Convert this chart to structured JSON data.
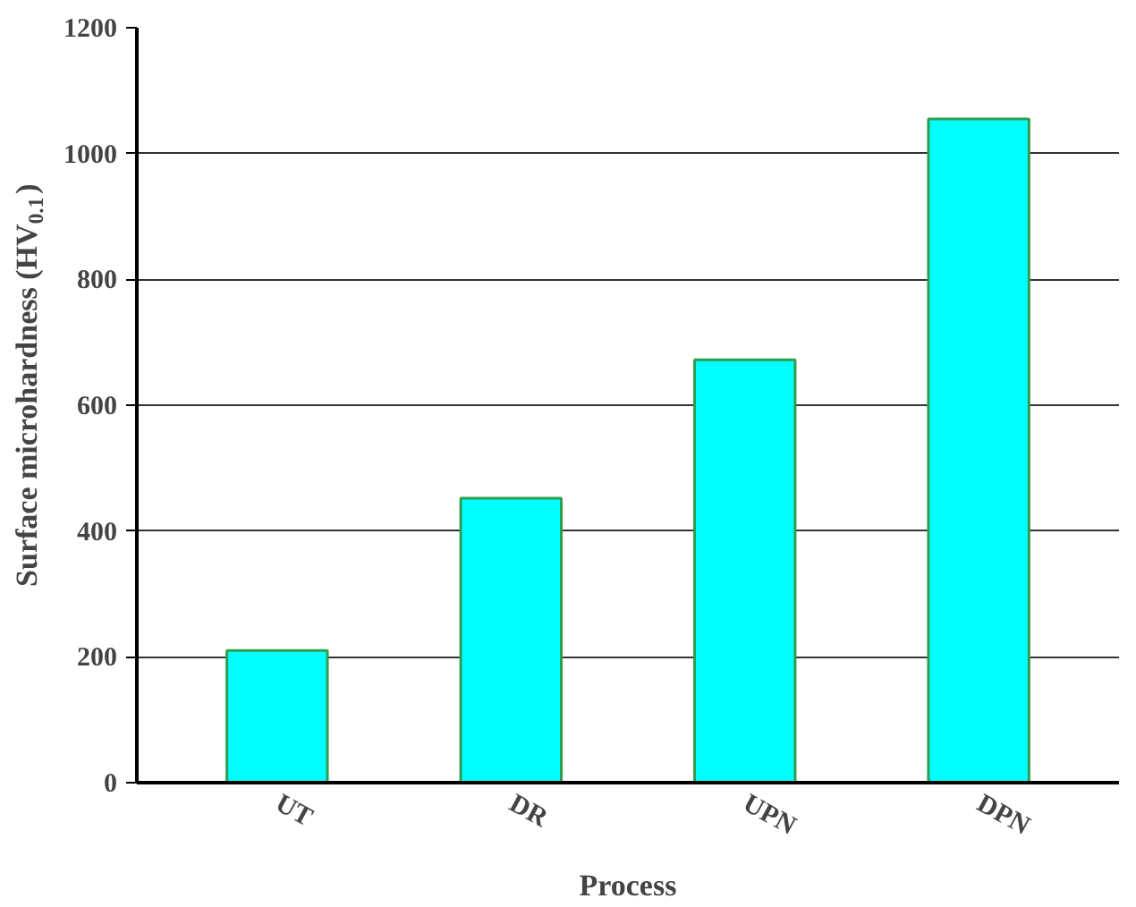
{
  "chart_data": {
    "type": "bar",
    "xlabel": "Process",
    "ylabel": "Surface microhardness (HV$_{0.1}$)",
    "categories": [
      "UT",
      "DR",
      "UPN",
      "DPN"
    ],
    "values": [
      210,
      452,
      672,
      1055
    ],
    "color": "#00ffff",
    "ylim": [
      0,
      1200
    ],
    "yticks": [
      0,
      200,
      400,
      600,
      800,
      1000,
      1200
    ],
    "grid": "y"
  }
}
